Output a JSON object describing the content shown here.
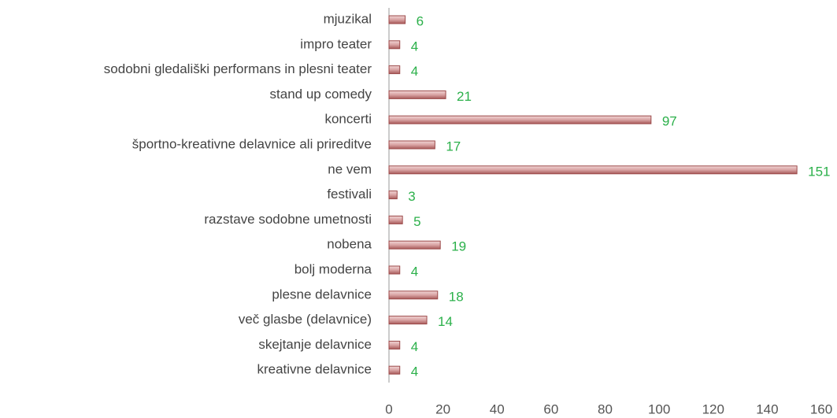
{
  "chart_data": {
    "type": "hbar",
    "categories": [
      "mjuzikal",
      "impro teater",
      "sodobni gledališki performans in plesni teater",
      "stand up comedy",
      "koncerti",
      "športno-kreativne delavnice ali prireditve",
      "ne vem",
      "festivali",
      "razstave sodobne umetnosti",
      "nobena",
      "bolj moderna",
      "plesne delavnice",
      "več glasbe (delavnice)",
      "skejtanje delavnice",
      "kreativne delavnice"
    ],
    "values": [
      6,
      4,
      4,
      21,
      97,
      17,
      151,
      3,
      5,
      19,
      4,
      18,
      14,
      4,
      4
    ],
    "color": "#d9a3a3",
    "label_color": "#2bb04a",
    "xlim": [
      0,
      160
    ],
    "xticks": [
      0,
      20,
      40,
      60,
      80,
      100,
      120,
      140,
      160
    ],
    "grid": false
  }
}
